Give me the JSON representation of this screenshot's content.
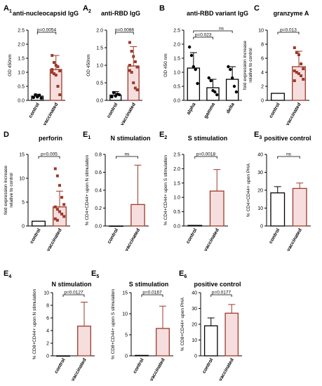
{
  "colors": {
    "control": "#000000",
    "vaccinated": "#9c3a2a",
    "vaccinated_bar_fill": "#f6dede",
    "marker": "#9c3a2a",
    "axis": "#000000"
  },
  "chart_data": [
    {
      "id": "A1",
      "letter": "A",
      "sub": "1",
      "title": "anti-nucleocapsid IgG",
      "type": "bar",
      "ylabel": "OD 450nm",
      "ylim": [
        0,
        2.5
      ],
      "yticks": [
        "0.0",
        "0.5",
        "1.0",
        "1.5",
        "2.0",
        "2.5"
      ],
      "categories": [
        "control",
        "vaccinated"
      ],
      "values": [
        0.15,
        1.1
      ],
      "errors": [
        0.07,
        0.5
      ],
      "sig": "p=0.0054",
      "points": [
        [
          0.1,
          0.2,
          0.12,
          0.18,
          0.08
        ],
        [
          1.6,
          1.35,
          1.25,
          1.2,
          1.05,
          1.0,
          0.95,
          0.9,
          0.5,
          0.2,
          1.1
        ]
      ]
    },
    {
      "id": "A2",
      "letter": "A",
      "sub": "2",
      "title": "anti-RBD IgG",
      "type": "bar",
      "ylabel": "OD 450nm",
      "ylim": [
        0,
        2.0
      ],
      "yticks": [
        "0.0",
        "0.5",
        "1.0",
        "1.5",
        "2.0"
      ],
      "categories": [
        "control",
        "vaccinated"
      ],
      "values": [
        0.15,
        0.98
      ],
      "errors": [
        0.1,
        0.55
      ],
      "sig": "p=0.0086",
      "points": [
        [
          0.1,
          0.22,
          0.12,
          0.18,
          0.16
        ],
        [
          1.65,
          1.4,
          1.25,
          1.1,
          0.95,
          0.85,
          0.8,
          0.5,
          0.35,
          0.3,
          1.0
        ]
      ]
    },
    {
      "id": "B",
      "letter": "B",
      "sub": "",
      "title": "anti-RBD variant IgG",
      "type": "bar",
      "ylabel": "OD 450 nm",
      "ylim": [
        0,
        2.5
      ],
      "yticks": [
        "0.0",
        "0.5",
        "1.0",
        "1.5",
        "2.0",
        "2.5"
      ],
      "categories": [
        "alpha",
        "gamma",
        "delta"
      ],
      "values": [
        1.15,
        0.45,
        0.75
      ],
      "errors": [
        0.55,
        0.3,
        0.45
      ],
      "sig": "p=0.023",
      "ns": "ns",
      "points": [
        [
          1.9,
          1.6,
          1.2,
          1.1,
          0.6
        ],
        [
          0.8,
          0.7,
          0.35,
          0.3,
          0.2
        ],
        [
          1.2,
          1.1,
          0.8,
          0.5,
          0.3
        ]
      ]
    },
    {
      "id": "C",
      "letter": "C",
      "sub": "",
      "title": "granzyme A",
      "type": "bar",
      "ylabel": "fold expression increase\nrelative to control",
      "ylim": [
        0,
        10
      ],
      "yticks": [
        "0",
        "2",
        "4",
        "6",
        "8",
        "10"
      ],
      "categories": [
        "control",
        "vaccinated"
      ],
      "values": [
        1.0,
        4.8
      ],
      "errors": [
        0,
        2.2
      ],
      "sig": "p=0.013",
      "points": [
        [],
        [
          7.5,
          6.8,
          6.5,
          5.2,
          4.5,
          4.2,
          4.0,
          3.8,
          3.5,
          3.0,
          2.8
        ]
      ]
    },
    {
      "id": "D",
      "letter": "D",
      "sub": "",
      "title": "perforin",
      "type": "bar",
      "ylabel": "fold expression increase\nrelative to control",
      "ylim": [
        0,
        15
      ],
      "yticks": [
        "0",
        "5",
        "10",
        "15"
      ],
      "categories": [
        "control",
        "vaccinated"
      ],
      "values": [
        1.0,
        4.0
      ],
      "errors": [
        0,
        3.3
      ],
      "sig": "p=0.005",
      "points": [
        [],
        [
          12,
          10.5,
          8.5,
          6,
          4.5,
          4,
          3.5,
          3,
          2.5,
          2,
          1.5,
          1.2
        ]
      ]
    },
    {
      "id": "E1",
      "letter": "E",
      "sub": "1",
      "title": "N stimulation",
      "type": "bar",
      "ylabel": "% CD4+CD44+ upon N stimulation",
      "ylim": [
        0,
        0.8
      ],
      "yticks": [
        "0.0",
        "0.2",
        "0.4",
        "0.6",
        "0.8"
      ],
      "categories": [
        "control",
        "vaccinated"
      ],
      "values": [
        0.0,
        0.24
      ],
      "errors": [
        0,
        0.44
      ],
      "sig": "",
      "ns": "ns",
      "points": [
        [],
        []
      ]
    },
    {
      "id": "E2",
      "letter": "E",
      "sub": "2",
      "title": "S stimulation",
      "type": "bar",
      "ylabel": "% CD4+CD44+ upon S stimulation",
      "ylim": [
        0,
        2.5
      ],
      "yticks": [
        "0.0",
        "0.5",
        "1.0",
        "1.5",
        "2.0",
        "2.5"
      ],
      "categories": [
        "control",
        "vaccinated"
      ],
      "values": [
        0.02,
        1.22
      ],
      "errors": [
        0,
        0.75
      ],
      "sig": "p=0.0018",
      "points": [
        [],
        []
      ]
    },
    {
      "id": "E3",
      "letter": "E",
      "sub": "3",
      "title": "positive control",
      "type": "bar",
      "ylabel": "% CD4+CD44+ upon PHA",
      "ylim": [
        0,
        40
      ],
      "yticks": [
        "0",
        "10",
        "20",
        "30",
        "40"
      ],
      "categories": [
        "control",
        "vaccinated"
      ],
      "values": [
        18.5,
        21.0
      ],
      "errors": [
        3.5,
        3.0
      ],
      "sig": "",
      "ns": "ns",
      "points": [
        [],
        []
      ]
    },
    {
      "id": "E4",
      "letter": "E",
      "sub": "4",
      "title": "N stimulation",
      "type": "bar",
      "ylabel": "% CD8+CD44+ upon N stimulation",
      "ylim": [
        0,
        10
      ],
      "yticks": [
        "0",
        "2",
        "4",
        "6",
        "8",
        "10"
      ],
      "categories": [
        "control",
        "vaccinated"
      ],
      "values": [
        0.0,
        4.7
      ],
      "errors": [
        0,
        3.8
      ],
      "sig": "p=0.0127",
      "points": [
        [],
        []
      ]
    },
    {
      "id": "E5",
      "letter": "E",
      "sub": "5",
      "title": "S stimulation",
      "type": "bar",
      "ylabel": "% CD8+CD44+ upon S stimulation",
      "ylim": [
        0,
        15
      ],
      "yticks": [
        "0",
        "5",
        "10",
        "15"
      ],
      "categories": [
        "control",
        "vaccinated"
      ],
      "values": [
        0.1,
        6.5
      ],
      "errors": [
        0,
        5.3
      ],
      "sig": "p=0.0167",
      "points": [
        [],
        []
      ]
    },
    {
      "id": "E6",
      "letter": "E",
      "sub": "6",
      "title": "positive control",
      "type": "bar",
      "ylabel": "% CD8+CD44+ upon PHA",
      "ylim": [
        0,
        40
      ],
      "yticks": [
        "0",
        "10",
        "20",
        "30",
        "40"
      ],
      "categories": [
        "control",
        "vaccinated"
      ],
      "values": [
        19.0,
        27.0
      ],
      "errors": [
        5.0,
        5.5
      ],
      "sig": "p=0.0177",
      "points": [
        [],
        []
      ]
    }
  ]
}
